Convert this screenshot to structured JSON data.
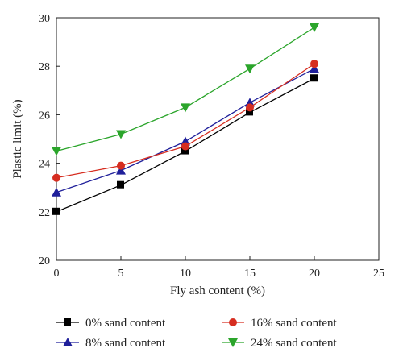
{
  "chart_data": {
    "type": "line",
    "title": "",
    "xlabel": "Fly ash content (%)",
    "ylabel": "Plastic limit (%)",
    "xlim": [
      0,
      25
    ],
    "ylim": [
      20,
      30
    ],
    "xticks": [
      0,
      5,
      10,
      15,
      20,
      25
    ],
    "yticks": [
      20,
      22,
      24,
      26,
      28,
      30
    ],
    "x": [
      0,
      5,
      10,
      15,
      20
    ],
    "grid": false,
    "legend_position": "bottom",
    "series": [
      {
        "name": "0% sand content",
        "color": "#000000",
        "marker": "square",
        "values": [
          22.0,
          23.1,
          24.5,
          26.1,
          27.5
        ]
      },
      {
        "name": "8% sand content",
        "color": "#1f1f9a",
        "marker": "triangle-up",
        "values": [
          22.8,
          23.7,
          24.9,
          26.5,
          27.9
        ]
      },
      {
        "name": "16% sand content",
        "color": "#d62d20",
        "marker": "circle",
        "values": [
          23.4,
          23.9,
          24.7,
          26.3,
          28.1
        ]
      },
      {
        "name": "24% sand content",
        "color": "#2ba52b",
        "marker": "triangle-down",
        "values": [
          24.5,
          25.2,
          26.3,
          27.9,
          29.6
        ]
      }
    ]
  }
}
